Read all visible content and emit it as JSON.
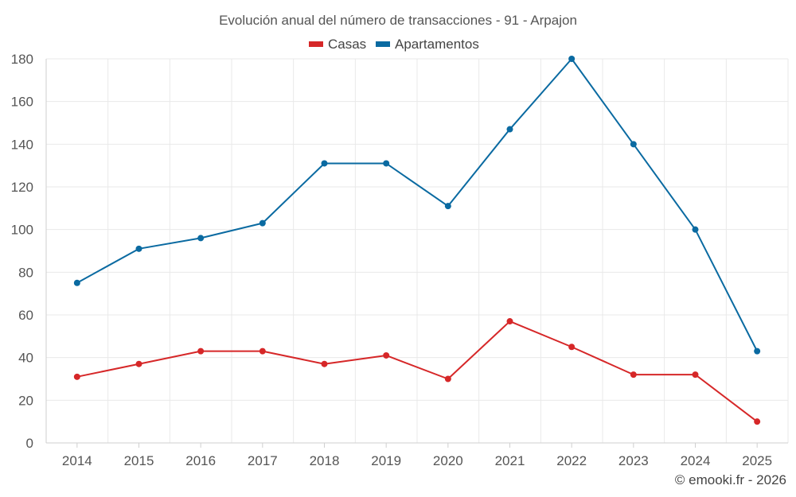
{
  "chart_data": {
    "type": "line",
    "title": "Evolución anual del número de transacciones - 91 - Arpajon",
    "categories": [
      "2014",
      "2015",
      "2016",
      "2017",
      "2018",
      "2019",
      "2020",
      "2021",
      "2022",
      "2023",
      "2024",
      "2025"
    ],
    "series": [
      {
        "name": "Casas",
        "color": "#d62728",
        "values": [
          31,
          37,
          43,
          43,
          37,
          41,
          30,
          57,
          45,
          32,
          32,
          10
        ]
      },
      {
        "name": "Apartamentos",
        "color": "#0a6aa1",
        "values": [
          75,
          91,
          96,
          103,
          131,
          131,
          111,
          147,
          180,
          140,
          100,
          43
        ]
      }
    ],
    "ylim": [
      0,
      180
    ],
    "yticks": [
      0,
      20,
      40,
      60,
      80,
      100,
      120,
      140,
      160,
      180
    ],
    "xlabel": "",
    "ylabel": "",
    "grid": true,
    "legend_position": "top-center"
  },
  "credit": "© emooki.fr - 2026"
}
